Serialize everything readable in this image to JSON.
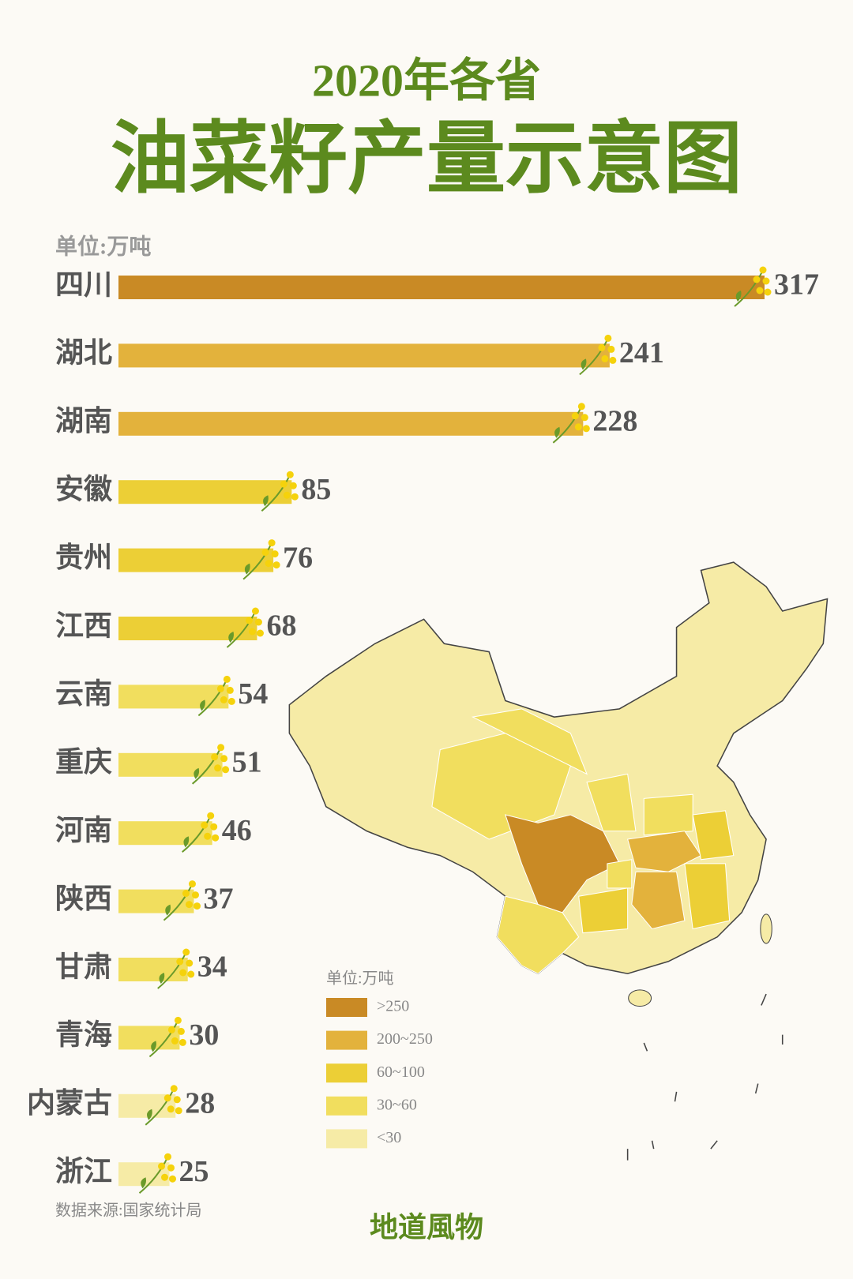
{
  "header": {
    "year_line": "2020年各省",
    "title": "油菜籽产量示意图"
  },
  "chart_data": {
    "type": "bar",
    "orientation": "horizontal",
    "unit": "单位:万吨",
    "categories": [
      "四川",
      "湖北",
      "湖南",
      "安徽",
      "贵州",
      "江西",
      "云南",
      "重庆",
      "河南",
      "陕西",
      "甘肃",
      "青海",
      "内蒙古",
      "浙江"
    ],
    "values": [
      317,
      241,
      228,
      85,
      76,
      68,
      54,
      51,
      46,
      37,
      34,
      30,
      28,
      25
    ],
    "colors": [
      "#c98a25",
      "#e3b23c",
      "#e3b23c",
      "#eccf36",
      "#eccf36",
      "#eccf36",
      "#f1de5e",
      "#f1de5e",
      "#f1de5e",
      "#f1de5e",
      "#f1de5e",
      "#f1de5e",
      "#f6eba6",
      "#f6eba6"
    ]
  },
  "map_legend": {
    "title": "单位:万吨",
    "items": [
      {
        "label": ">250",
        "color": "#c98a25"
      },
      {
        "label": "200~250",
        "color": "#e3b23c"
      },
      {
        "label": "60~100",
        "color": "#eccf36"
      },
      {
        "label": "30~60",
        "color": "#f1de5e"
      },
      {
        "label": "<30",
        "color": "#f6eba6"
      }
    ]
  },
  "footer": {
    "source": "数据来源:国家统计局",
    "brand": "地道風物"
  }
}
